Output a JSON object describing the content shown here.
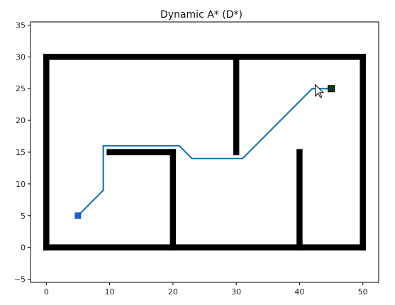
{
  "chart_data": {
    "type": "line",
    "title": "Dynamic A* (D*)",
    "xlabel": "",
    "ylabel": "",
    "xlim": [
      -2.5,
      52.5
    ],
    "ylim": [
      -5.5,
      35.5
    ],
    "x_ticks": [
      0,
      10,
      20,
      30,
      40,
      50
    ],
    "y_ticks": [
      -5,
      0,
      5,
      10,
      15,
      20,
      25,
      30,
      35
    ],
    "grid": false,
    "legend": "none",
    "obstacles": [
      {
        "name": "outer-bottom",
        "x": [
          0,
          50
        ],
        "y": [
          0,
          0
        ]
      },
      {
        "name": "outer-top",
        "x": [
          0,
          50
        ],
        "y": [
          30,
          30
        ]
      },
      {
        "name": "outer-left",
        "x": [
          0,
          0
        ],
        "y": [
          0,
          30
        ]
      },
      {
        "name": "outer-right",
        "x": [
          50,
          50
        ],
        "y": [
          0,
          30
        ]
      },
      {
        "name": "inner-horizontal",
        "x": [
          10,
          20
        ],
        "y": [
          15,
          15
        ]
      },
      {
        "name": "inner-vertical-20",
        "x": [
          20,
          20
        ],
        "y": [
          0,
          15
        ]
      },
      {
        "name": "inner-vertical-30",
        "x": [
          30,
          30
        ],
        "y": [
          15,
          30
        ]
      },
      {
        "name": "inner-vertical-40",
        "x": [
          40,
          40
        ],
        "y": [
          0,
          15
        ]
      }
    ],
    "path": {
      "x": [
        5,
        9,
        9,
        21,
        23,
        31,
        42,
        45
      ],
      "y": [
        5,
        9,
        16,
        16,
        14,
        14,
        25,
        25
      ]
    },
    "start": {
      "x": 5,
      "y": 5
    },
    "goal": {
      "x": 45,
      "y": 25
    },
    "cursor": {
      "x": 42.5,
      "y": 24.5
    }
  },
  "colors": {
    "obstacle": "#000000",
    "path": "#1f77b4",
    "start": "#1f5fc8",
    "goal": "#0d3d12",
    "goal_edge": "#000000",
    "axes": "#000000"
  }
}
